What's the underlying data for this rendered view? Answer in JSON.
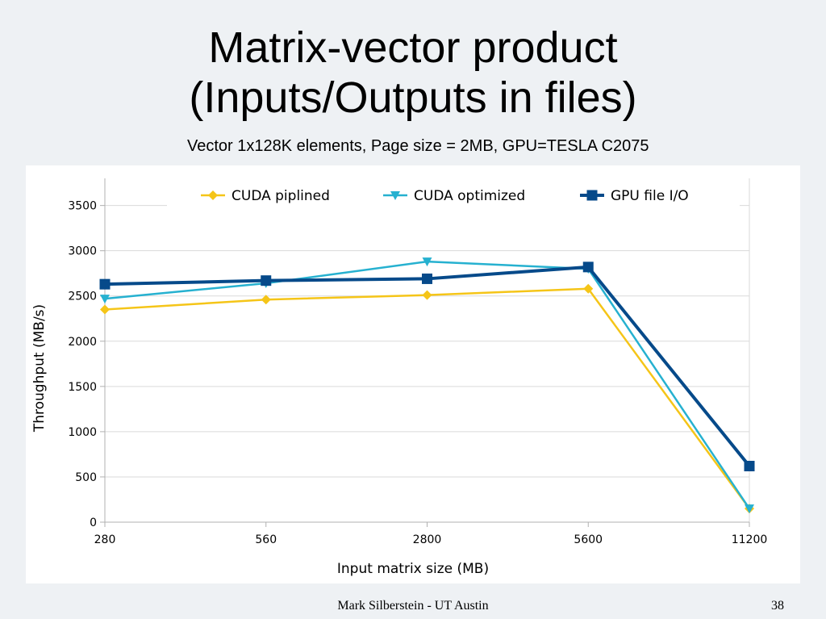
{
  "slide": {
    "title_line1": "Matrix-vector product",
    "title_line2": "(Inputs/Outputs in files)",
    "footer": "Mark Silberstein - UT Austin",
    "page_number": "38"
  },
  "chart_data": {
    "type": "line",
    "title": "Vector 1x128K elements, Page size = 2MB, GPU=TESLA C2075",
    "xlabel": "Input matrix size (MB)",
    "ylabel": "Throughput (MB/s)",
    "categories": [
      "280",
      "560",
      "2800",
      "5600",
      "11200"
    ],
    "ylim": [
      0,
      3500
    ],
    "yticks": [
      0,
      500,
      1000,
      1500,
      2000,
      2500,
      3000,
      3500
    ],
    "grid": true,
    "legend_position": "top",
    "series": [
      {
        "name": "CUDA piplined",
        "color": "#f5c518",
        "marker": "diamond",
        "values": [
          2350,
          2460,
          2510,
          2580,
          150
        ]
      },
      {
        "name": "CUDA optimized",
        "color": "#26b1d0",
        "marker": "triangle-down",
        "values": [
          2470,
          2640,
          2880,
          2800,
          150
        ]
      },
      {
        "name": "GPU file I/O",
        "color": "#064a8a",
        "marker": "square",
        "values": [
          2630,
          2670,
          2690,
          2820,
          620
        ]
      }
    ]
  }
}
